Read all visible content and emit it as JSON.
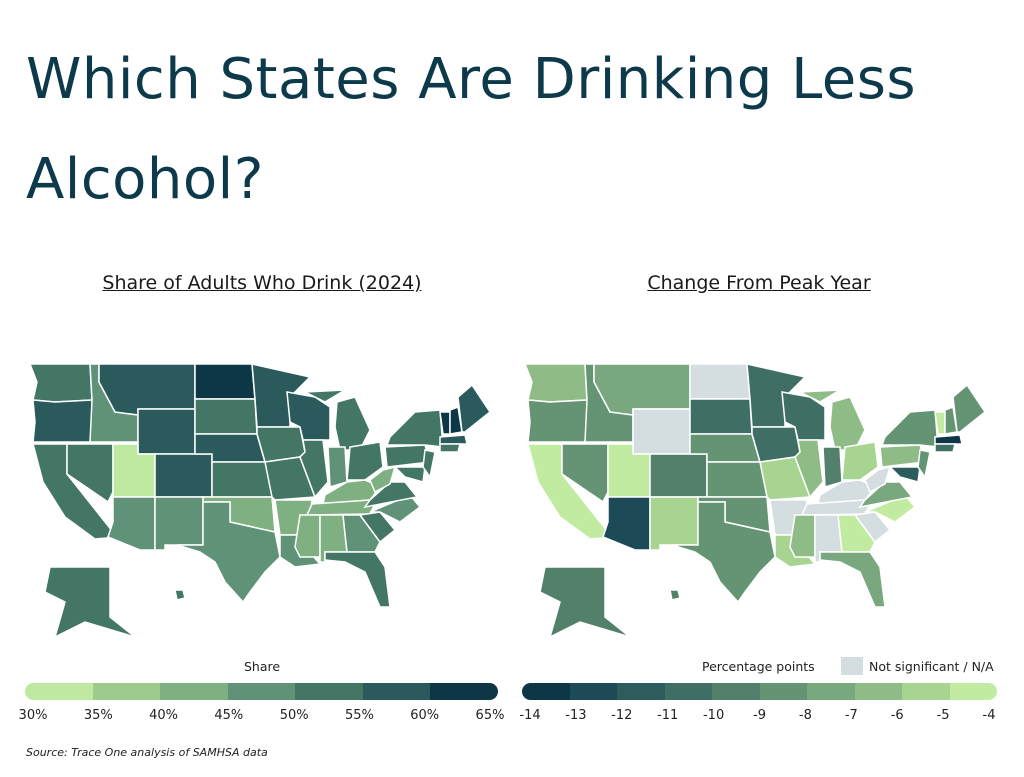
{
  "title": "Which States Are Drinking Less Alcohol?",
  "source": "Source: Trace One analysis of SAMHSA data",
  "left_map": {
    "title": "Share of Adults Who Drink (2024)",
    "legend_title": "Share",
    "ticks": [
      "30%",
      "35%",
      "40%",
      "45%",
      "50%",
      "55%",
      "60%",
      "65%"
    ],
    "colors": [
      "#bfe9a0",
      "#9dcb8b",
      "#7fb081",
      "#5f9277",
      "#447666",
      "#2a5a5c",
      "#0d3747"
    ],
    "state_bins": {
      "WA": 4,
      "OR": 5,
      "CA": 4,
      "NV": 4,
      "ID": 3,
      "MT": 5,
      "WY": 5,
      "UT": 0,
      "CO": 5,
      "AZ": 3,
      "NM": 3,
      "ND": 6,
      "SD": 4,
      "NE": 5,
      "KS": 4,
      "OK": 2,
      "TX": 3,
      "MN": 5,
      "IA": 4,
      "MO": 4,
      "AR": 2,
      "LA": 3,
      "WI": 5,
      "IL": 4,
      "MI": 4,
      "MIU": 4,
      "IN": 3,
      "OH": 4,
      "KY": 2,
      "TN": 2,
      "MS": 2,
      "AL": 2,
      "GA": 3,
      "FL": 4,
      "SC": 4,
      "NC": 3,
      "VA": 4,
      "WV": 2,
      "PA": 4,
      "NY": 4,
      "MD": 4,
      "NJ": 4,
      "VT": 6,
      "NH": 6,
      "ME": 5,
      "MA": 5,
      "CT": 4,
      "AK": 4,
      "HI": 4
    }
  },
  "right_map": {
    "title": "Change From Peak Year",
    "legend_title": "Percentage points",
    "ns_label": "Not significant / N/A",
    "ns_color": "#d4dde0",
    "ticks": [
      "-14",
      "-13",
      "-12",
      "-11",
      "-10",
      "-9",
      "-8",
      "-7",
      "-6",
      "-5",
      "-4"
    ],
    "colors": [
      "#0d3747",
      "#1d4a57",
      "#2d5c5d",
      "#3f6f64",
      "#52806b",
      "#659475",
      "#79a77e",
      "#8fbc86",
      "#a8d491",
      "#c0eba0"
    ],
    "state_bins": {
      "WA": 7,
      "OR": 5,
      "CA": 9,
      "NV": 5,
      "ID": 5,
      "MT": 6,
      "WY": -1,
      "UT": 9,
      "CO": 4,
      "AZ": 1,
      "NM": 8,
      "ND": -1,
      "SD": 3,
      "NE": 5,
      "KS": 5,
      "OK": 5,
      "TX": 5,
      "MN": 3,
      "IA": 3,
      "MO": 8,
      "AR": -1,
      "LA": 8,
      "WI": 3,
      "IL": 7,
      "MI": 7,
      "MIU": 7,
      "IN": 4,
      "OH": 8,
      "KY": -1,
      "TN": -1,
      "MS": 7,
      "AL": -1,
      "GA": 9,
      "FL": 6,
      "SC": -1,
      "NC": 9,
      "VA": 6,
      "WV": -1,
      "PA": 7,
      "NY": 5,
      "MD": 2,
      "NJ": 5,
      "VT": 9,
      "NH": 5,
      "ME": 5,
      "MA": 0,
      "CT": 3,
      "AK": 4,
      "HI": 4
    }
  }
}
